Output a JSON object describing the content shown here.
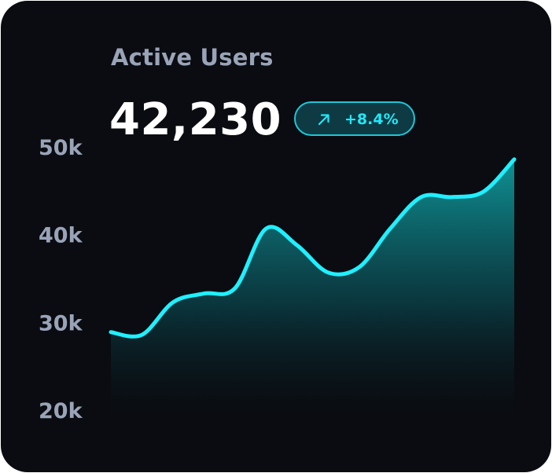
{
  "card": {
    "title": "Active Users",
    "value": "42,230",
    "change": {
      "text": "+8.4%",
      "icon": "arrow-up-right-icon",
      "color": "#21e8f8"
    }
  },
  "colors": {
    "background": "#0a0c11",
    "line": "#1ff0ff",
    "area_top": "#0e8a8c",
    "title": "#9aa4b8",
    "value": "#ffffff"
  },
  "chart_data": {
    "type": "area",
    "title": "Active Users",
    "xlabel": "",
    "ylabel": "",
    "ylim": [
      20000,
      50000
    ],
    "yticks": [
      50000,
      40000,
      30000,
      20000
    ],
    "ytick_labels": [
      "50k",
      "40k",
      "30k",
      "20k"
    ],
    "grid": false,
    "legend": "none",
    "series": [
      {
        "x": [
          0,
          1,
          2,
          3,
          4,
          5,
          6,
          7,
          8,
          9,
          10,
          11,
          12,
          13
        ],
        "values": [
          28800,
          28500,
          32200,
          33200,
          33800,
          40600,
          38700,
          35600,
          36200,
          40600,
          44200,
          44200,
          44800,
          48500
        ]
      }
    ]
  }
}
